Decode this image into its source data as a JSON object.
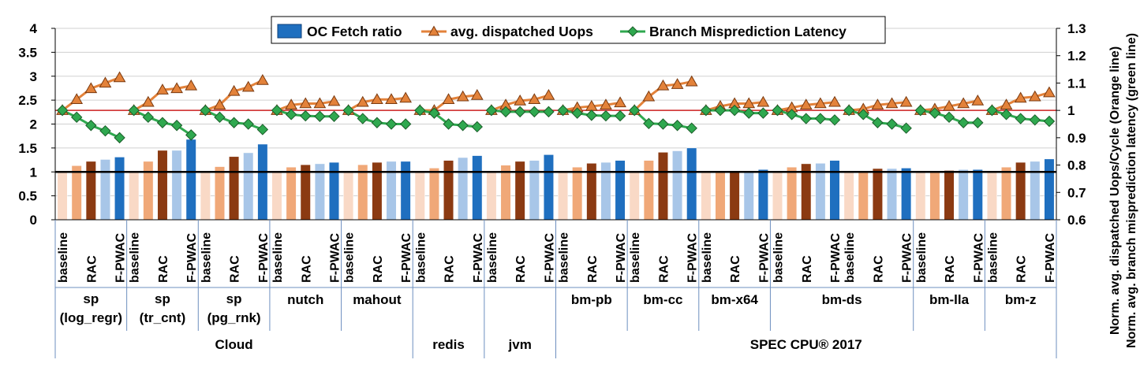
{
  "chart_data": {
    "type": "bar",
    "legend": {
      "position": "top-center",
      "items": [
        {
          "label": "OC Fetch ratio",
          "kind": "bar",
          "color": "#1f6fbf"
        },
        {
          "label": "avg. dispatched Uops",
          "kind": "line-triangle",
          "color": "#e3823a"
        },
        {
          "label": "Branch Misprediction Latency",
          "kind": "line-diamond",
          "color": "#2fa84f"
        }
      ]
    },
    "left_axis": {
      "min": 0,
      "max": 4,
      "ticks": [
        "0",
        "0.5",
        "1",
        "1.5",
        "2",
        "2.5",
        "3",
        "3.5",
        "4"
      ]
    },
    "right_axis": {
      "min": 0.6,
      "max": 1.3,
      "ticks": [
        "0.6",
        "0.7",
        "0.8",
        "0.9",
        "1",
        "1.1",
        "1.2",
        "1.3"
      ],
      "label_line1": "Norm. avg. dispatched Uops/Cycle (Orange line)",
      "label_line2": "Norm. avg. branch misprediction latency (green line)"
    },
    "reference_lines": {
      "left_axis_value": 1.0,
      "right_axis_value": 1.0
    },
    "bar_colors": [
      "#f9d9c6",
      "#f0a878",
      "#8b3a12",
      "#a8c6e8",
      "#1f6fbf"
    ],
    "variant_labels": [
      "baseline",
      "",
      "RAC",
      "",
      "F-PWAC"
    ],
    "benchmarks": [
      {
        "name_line1": "sp",
        "name_line2": "(log_regr)",
        "bars": [
          1.0,
          1.13,
          1.22,
          1.26,
          1.31
        ],
        "uops": [
          1.0,
          1.04,
          1.08,
          1.1,
          1.12
        ],
        "branch": [
          1.0,
          0.975,
          0.945,
          0.925,
          0.9
        ]
      },
      {
        "name_line1": "sp",
        "name_line2": "(tr_cnt)",
        "bars": [
          1.0,
          1.22,
          1.45,
          1.45,
          1.68
        ],
        "uops": [
          1.0,
          1.03,
          1.075,
          1.08,
          1.09
        ],
        "branch": [
          1.0,
          0.975,
          0.955,
          0.945,
          0.91
        ]
      },
      {
        "name_line1": "sp",
        "name_line2": "(pg_rnk)",
        "bars": [
          1.0,
          1.11,
          1.32,
          1.4,
          1.58
        ],
        "uops": [
          1.0,
          1.02,
          1.07,
          1.085,
          1.11
        ],
        "branch": [
          1.0,
          0.975,
          0.955,
          0.95,
          0.93
        ]
      },
      {
        "name_line1": "nutch",
        "name_line2": "",
        "bars": [
          1.0,
          1.1,
          1.15,
          1.17,
          1.2
        ],
        "uops": [
          1.0,
          1.02,
          1.025,
          1.025,
          1.033
        ],
        "branch": [
          1.0,
          0.985,
          0.98,
          0.978,
          0.978
        ]
      },
      {
        "name_line1": "mahout",
        "name_line2": "",
        "bars": [
          1.0,
          1.15,
          1.2,
          1.22,
          1.22
        ],
        "uops": [
          1.0,
          1.03,
          1.04,
          1.04,
          1.045
        ],
        "branch": [
          1.0,
          0.97,
          0.955,
          0.95,
          0.95
        ]
      },
      {
        "name_line1": "",
        "name_line2": "",
        "bars": [
          1.0,
          1.08,
          1.24,
          1.3,
          1.34
        ],
        "uops": [
          1.0,
          1.0,
          1.04,
          1.05,
          1.055
        ],
        "branch": [
          1.0,
          0.99,
          0.95,
          0.945,
          0.94
        ]
      },
      {
        "name_line1": "",
        "name_line2": "",
        "bars": [
          1.0,
          1.14,
          1.22,
          1.24,
          1.36
        ],
        "uops": [
          1.0,
          1.02,
          1.035,
          1.04,
          1.055
        ],
        "branch": [
          1.0,
          0.995,
          0.995,
          0.995,
          0.995
        ]
      },
      {
        "name_line1": "bm-pb",
        "name_line2": "",
        "bars": [
          1.0,
          1.1,
          1.18,
          1.2,
          1.24
        ],
        "uops": [
          1.0,
          1.01,
          1.015,
          1.02,
          1.028
        ],
        "branch": [
          1.0,
          0.99,
          0.982,
          0.98,
          0.98
        ]
      },
      {
        "name_line1": "bm-cc",
        "name_line2": "",
        "bars": [
          1.0,
          1.24,
          1.41,
          1.44,
          1.5
        ],
        "uops": [
          1.0,
          1.05,
          1.09,
          1.095,
          1.105
        ],
        "branch": [
          1.0,
          0.952,
          0.95,
          0.945,
          0.935
        ]
      },
      {
        "name_line1": "bm-x64",
        "name_line2": "",
        "bars": [
          1.0,
          1.0,
          1.0,
          1.0,
          1.05
        ],
        "uops": [
          1.0,
          1.015,
          1.025,
          1.025,
          1.03
        ],
        "branch": [
          1.0,
          1.0,
          1.0,
          0.99,
          0.99
        ]
      },
      {
        "name_line1": "bm-ds",
        "name_line2": "",
        "bars": [
          1.0,
          1.1,
          1.17,
          1.18,
          1.24
        ],
        "uops": [
          1.0,
          1.01,
          1.02,
          1.025,
          1.03
        ],
        "branch": [
          1.0,
          0.985,
          0.97,
          0.97,
          0.965
        ]
      },
      {
        "name_line1": "",
        "name_line2": "",
        "bars": [
          1.0,
          1.0,
          1.07,
          1.07,
          1.08
        ],
        "uops": [
          1.0,
          1.005,
          1.02,
          1.025,
          1.03
        ],
        "branch": [
          1.0,
          0.985,
          0.955,
          0.95,
          0.935
        ]
      },
      {
        "name_line1": "bm-lla",
        "name_line2": "",
        "bars": [
          1.0,
          1.0,
          1.03,
          1.05,
          1.05
        ],
        "uops": [
          1.0,
          1.005,
          1.015,
          1.025,
          1.035
        ],
        "branch": [
          1.0,
          0.99,
          0.975,
          0.955,
          0.955
        ]
      },
      {
        "name_line1": "bm-z",
        "name_line2": "",
        "bars": [
          1.0,
          1.1,
          1.2,
          1.22,
          1.27
        ],
        "uops": [
          1.0,
          1.02,
          1.045,
          1.05,
          1.065
        ],
        "branch": [
          1.0,
          0.985,
          0.97,
          0.965,
          0.96
        ]
      }
    ],
    "benchmark_label_row": [
      {
        "text1": "sp",
        "text2": "(log_regr)",
        "from": 0,
        "to": 0
      },
      {
        "text1": "sp",
        "text2": "(tr_cnt)",
        "from": 1,
        "to": 1
      },
      {
        "text1": "sp",
        "text2": "(pg_rnk)",
        "from": 2,
        "to": 2
      },
      {
        "text1": "nutch",
        "text2": "",
        "from": 3,
        "to": 3
      },
      {
        "text1": "mahout",
        "text2": "",
        "from": 4,
        "to": 4
      },
      {
        "text1": "",
        "text2": "",
        "from": 5,
        "to": 5
      },
      {
        "text1": "",
        "text2": "",
        "from": 6,
        "to": 6
      },
      {
        "text1": "bm-pb",
        "text2": "",
        "from": 7,
        "to": 7
      },
      {
        "text1": "bm-cc",
        "text2": "",
        "from": 8,
        "to": 8
      },
      {
        "text1": "bm-x64",
        "text2": "",
        "from": 9,
        "to": 9
      },
      {
        "text1": "bm-ds",
        "text2": "",
        "from": 10,
        "to": 11
      },
      {
        "text1": "bm-lla",
        "text2": "",
        "from": 12,
        "to": 12
      },
      {
        "text1": "bm-z",
        "text2": "",
        "from": 13,
        "to": 13
      }
    ],
    "groups": [
      {
        "label": "Cloud",
        "from": 0,
        "to": 4
      },
      {
        "label": "redis",
        "from": 5,
        "to": 5
      },
      {
        "label": "jvm",
        "from": 6,
        "to": 6
      },
      {
        "label": "SPEC CPU® 2017",
        "from": 7,
        "to": 13
      }
    ]
  }
}
